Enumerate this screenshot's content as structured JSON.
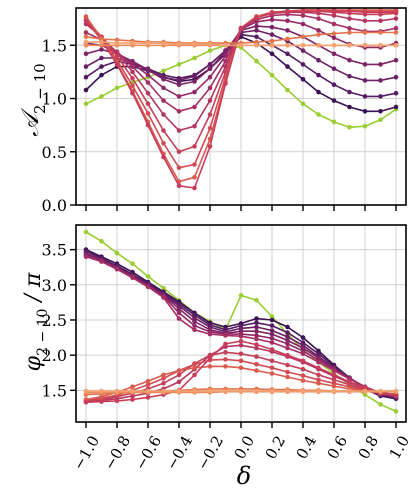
{
  "chart_data": [
    {
      "type": "line",
      "ylabel": "𝒜",
      "ylabel_sub": "2 − 10",
      "ylim": [
        0.0,
        1.85
      ],
      "xlim": [
        -1.0,
        1.0
      ],
      "yticks": [
        "0.0",
        "0.5",
        "1.0",
        "1.5"
      ],
      "ytick_values": [
        0.0,
        0.5,
        1.0,
        1.5
      ],
      "grid": true,
      "x": [
        -1.0,
        -0.9,
        -0.8,
        -0.7,
        -0.6,
        -0.5,
        -0.4,
        -0.3,
        -0.2,
        -0.1,
        0.0,
        0.1,
        0.2,
        0.3,
        0.4,
        0.5,
        0.6,
        0.7,
        0.8,
        0.9,
        1.0
      ],
      "series": [
        {
          "color": "#9acd32",
          "values": [
            0.95,
            1.02,
            1.1,
            1.15,
            1.2,
            1.26,
            1.32,
            1.38,
            1.45,
            1.5,
            1.48,
            1.35,
            1.22,
            1.08,
            0.95,
            0.85,
            0.78,
            0.73,
            0.74,
            0.8,
            0.9
          ]
        },
        {
          "color": "#3b1253",
          "values": [
            1.08,
            1.22,
            1.3,
            1.3,
            1.26,
            1.2,
            1.16,
            1.18,
            1.28,
            1.42,
            1.58,
            1.52,
            1.42,
            1.3,
            1.18,
            1.06,
            0.98,
            0.92,
            0.88,
            0.88,
            0.92
          ]
        },
        {
          "color": "#541c63",
          "values": [
            1.2,
            1.3,
            1.35,
            1.32,
            1.28,
            1.22,
            1.19,
            1.22,
            1.32,
            1.45,
            1.6,
            1.58,
            1.5,
            1.42,
            1.32,
            1.22,
            1.13,
            1.06,
            1.02,
            1.02,
            1.05
          ]
        },
        {
          "color": "#6a2065",
          "values": [
            1.3,
            1.38,
            1.38,
            1.33,
            1.27,
            1.2,
            1.17,
            1.21,
            1.32,
            1.45,
            1.62,
            1.64,
            1.6,
            1.54,
            1.45,
            1.36,
            1.28,
            1.21,
            1.17,
            1.17,
            1.2
          ]
        },
        {
          "color": "#7e2466",
          "values": [
            1.42,
            1.46,
            1.42,
            1.35,
            1.27,
            1.18,
            1.13,
            1.16,
            1.28,
            1.44,
            1.64,
            1.68,
            1.67,
            1.64,
            1.58,
            1.5,
            1.42,
            1.36,
            1.32,
            1.32,
            1.36
          ]
        },
        {
          "color": "#922866",
          "values": [
            1.52,
            1.5,
            1.43,
            1.33,
            1.22,
            1.1,
            1.02,
            1.06,
            1.2,
            1.4,
            1.65,
            1.72,
            1.74,
            1.73,
            1.7,
            1.64,
            1.57,
            1.51,
            1.48,
            1.48,
            1.52
          ]
        },
        {
          "color": "#a52e64",
          "values": [
            1.62,
            1.55,
            1.44,
            1.3,
            1.15,
            0.98,
            0.88,
            0.92,
            1.1,
            1.35,
            1.66,
            1.74,
            1.78,
            1.79,
            1.78,
            1.75,
            1.7,
            1.66,
            1.63,
            1.63,
            1.66
          ]
        },
        {
          "color": "#b5365f",
          "values": [
            1.7,
            1.58,
            1.43,
            1.25,
            1.05,
            0.85,
            0.7,
            0.74,
            0.98,
            1.3,
            1.66,
            1.76,
            1.8,
            1.81,
            1.81,
            1.8,
            1.78,
            1.75,
            1.73,
            1.73,
            1.75
          ]
        },
        {
          "color": "#c43f5a",
          "values": [
            1.74,
            1.58,
            1.4,
            1.19,
            0.95,
            0.7,
            0.5,
            0.55,
            0.85,
            1.25,
            1.66,
            1.77,
            1.81,
            1.82,
            1.82,
            1.82,
            1.81,
            1.8,
            1.79,
            1.79,
            1.8
          ]
        },
        {
          "color": "#d14b53",
          "values": [
            1.76,
            1.57,
            1.36,
            1.12,
            0.86,
            0.58,
            0.35,
            0.38,
            0.72,
            1.2,
            1.66,
            1.77,
            1.81,
            1.82,
            1.83,
            1.83,
            1.83,
            1.82,
            1.82,
            1.82,
            1.82
          ]
        },
        {
          "color": "#db5a4e",
          "values": [
            1.77,
            1.56,
            1.33,
            1.07,
            0.78,
            0.48,
            0.22,
            0.26,
            0.62,
            1.16,
            1.66,
            1.77,
            1.8,
            1.82,
            1.83,
            1.83,
            1.83,
            1.83,
            1.83,
            1.83,
            1.83
          ]
        },
        {
          "color": "#c83d5c",
          "values": [
            1.73,
            1.55,
            1.32,
            1.05,
            0.75,
            0.45,
            0.18,
            0.16,
            0.55,
            1.14,
            1.66,
            1.76,
            1.8,
            1.82,
            1.82,
            1.82,
            1.82,
            1.82,
            1.81,
            1.81,
            1.81
          ]
        },
        {
          "color": "#e4744d",
          "values": [
            1.58,
            1.56,
            1.55,
            1.54,
            1.53,
            1.53,
            1.52,
            1.52,
            1.52,
            1.52,
            1.52,
            1.53,
            1.54,
            1.56,
            1.58,
            1.6,
            1.61,
            1.62,
            1.62,
            1.62,
            1.62
          ]
        },
        {
          "color": "#ec8a5b",
          "values": [
            1.5,
            1.5,
            1.5,
            1.5,
            1.5,
            1.5,
            1.5,
            1.5,
            1.5,
            1.5,
            1.5,
            1.5,
            1.5,
            1.5,
            1.5,
            1.5,
            1.5,
            1.5,
            1.5,
            1.5,
            1.5
          ]
        },
        {
          "color": "#f2a16f",
          "values": [
            1.53,
            1.53,
            1.52,
            1.52,
            1.52,
            1.52,
            1.51,
            1.51,
            1.51,
            1.5,
            1.5,
            1.5,
            1.5,
            1.5,
            1.5,
            1.5,
            1.5,
            1.5,
            1.5,
            1.5,
            1.5
          ]
        }
      ]
    },
    {
      "type": "line",
      "ylabel": "φ",
      "ylabel_sub": "2 − 10",
      "ylabel_suffix": " / π",
      "xlabel": "δ",
      "ylim": [
        1.05,
        3.85
      ],
      "xlim": [
        -1.0,
        1.0
      ],
      "yticks": [
        "1.5",
        "2.0",
        "2.5",
        "3.0",
        "3.5"
      ],
      "ytick_values": [
        1.5,
        2.0,
        2.5,
        3.0,
        3.5
      ],
      "xticks": [
        "−1.0",
        "−0.8",
        "−0.6",
        "−0.4",
        "−0.2",
        "0.0",
        "0.2",
        "0.4",
        "0.6",
        "0.8",
        "1.0"
      ],
      "xtick_values": [
        -1.0,
        -0.8,
        -0.6,
        -0.4,
        -0.2,
        0.0,
        0.2,
        0.4,
        0.6,
        0.8,
        1.0
      ],
      "grid": true,
      "x": [
        -1.0,
        -0.9,
        -0.8,
        -0.7,
        -0.6,
        -0.5,
        -0.4,
        -0.3,
        -0.2,
        -0.1,
        0.0,
        0.1,
        0.2,
        0.3,
        0.4,
        0.5,
        0.6,
        0.7,
        0.8,
        0.9,
        1.0
      ],
      "series": [
        {
          "color": "#9acd32",
          "values": [
            3.75,
            3.62,
            3.45,
            3.3,
            3.12,
            2.95,
            2.78,
            2.6,
            2.48,
            2.36,
            2.85,
            2.78,
            2.55,
            2.3,
            2.08,
            1.9,
            1.74,
            1.58,
            1.44,
            1.3,
            1.2
          ]
        },
        {
          "color": "#3b1253",
          "values": [
            3.5,
            3.4,
            3.3,
            3.18,
            3.04,
            2.9,
            2.76,
            2.6,
            2.46,
            2.4,
            2.45,
            2.52,
            2.5,
            2.4,
            2.25,
            2.06,
            1.86,
            1.68,
            1.52,
            1.42,
            1.38
          ]
        },
        {
          "color": "#541c63",
          "values": [
            3.48,
            3.38,
            3.27,
            3.15,
            3.02,
            2.88,
            2.73,
            2.57,
            2.43,
            2.36,
            2.42,
            2.46,
            2.42,
            2.32,
            2.18,
            2.02,
            1.84,
            1.68,
            1.53,
            1.43,
            1.39
          ]
        },
        {
          "color": "#6a2065",
          "values": [
            3.45,
            3.36,
            3.25,
            3.13,
            3.0,
            2.86,
            2.7,
            2.53,
            2.4,
            2.33,
            2.38,
            2.4,
            2.35,
            2.26,
            2.14,
            1.98,
            1.82,
            1.67,
            1.54,
            1.44,
            1.4
          ]
        },
        {
          "color": "#7e2466",
          "values": [
            3.43,
            3.35,
            3.24,
            3.12,
            2.99,
            2.85,
            2.66,
            2.48,
            2.36,
            2.31,
            2.34,
            2.34,
            2.3,
            2.21,
            2.1,
            1.96,
            1.81,
            1.67,
            1.55,
            1.45,
            1.41
          ]
        },
        {
          "color": "#922866",
          "values": [
            3.42,
            3.34,
            3.23,
            3.11,
            2.98,
            2.84,
            2.6,
            2.42,
            2.33,
            2.3,
            2.3,
            2.28,
            2.24,
            2.16,
            2.06,
            1.93,
            1.8,
            1.67,
            1.55,
            1.46,
            1.42
          ]
        },
        {
          "color": "#a52e64",
          "values": [
            3.4,
            3.33,
            3.22,
            3.1,
            2.97,
            2.82,
            2.52,
            2.36,
            2.3,
            2.28,
            2.27,
            2.23,
            2.18,
            2.1,
            2.02,
            1.9,
            1.78,
            1.66,
            1.55,
            1.46,
            1.42
          ]
        },
        {
          "color": "#b5365f",
          "values": [
            1.34,
            1.36,
            1.38,
            1.42,
            1.46,
            1.52,
            1.62,
            1.8,
            2.0,
            2.12,
            2.14,
            2.1,
            2.05,
            1.98,
            1.9,
            1.8,
            1.7,
            1.61,
            1.53,
            1.46,
            1.42
          ]
        },
        {
          "color": "#c43f5a",
          "values": [
            1.35,
            1.37,
            1.41,
            1.46,
            1.52,
            1.6,
            1.72,
            1.88,
            2.0,
            2.04,
            2.02,
            1.98,
            1.92,
            1.86,
            1.8,
            1.72,
            1.65,
            1.58,
            1.51,
            1.46,
            1.43
          ]
        },
        {
          "color": "#d14b53",
          "values": [
            1.36,
            1.39,
            1.43,
            1.5,
            1.58,
            1.67,
            1.78,
            1.87,
            1.93,
            1.94,
            1.92,
            1.87,
            1.82,
            1.76,
            1.71,
            1.65,
            1.6,
            1.55,
            1.5,
            1.46,
            1.44
          ]
        },
        {
          "color": "#db5a4e",
          "values": [
            1.37,
            1.41,
            1.47,
            1.55,
            1.63,
            1.72,
            1.78,
            1.82,
            1.84,
            1.84,
            1.82,
            1.78,
            1.74,
            1.69,
            1.64,
            1.6,
            1.56,
            1.52,
            1.49,
            1.46,
            1.45
          ]
        },
        {
          "color": "#c83d5c",
          "values": [
            1.33,
            1.34,
            1.35,
            1.37,
            1.4,
            1.44,
            1.5,
            1.72,
            1.96,
            2.16,
            2.2,
            2.15,
            2.08,
            2.0,
            1.92,
            1.82,
            1.72,
            1.62,
            1.54,
            1.47,
            1.43
          ]
        },
        {
          "color": "#e4744d",
          "values": [
            1.44,
            1.45,
            1.46,
            1.47,
            1.48,
            1.49,
            1.5,
            1.51,
            1.52,
            1.52,
            1.52,
            1.52,
            1.51,
            1.51,
            1.5,
            1.5,
            1.49,
            1.49,
            1.48,
            1.48,
            1.48
          ]
        },
        {
          "color": "#ec8a5b",
          "values": [
            1.47,
            1.47,
            1.47,
            1.47,
            1.47,
            1.47,
            1.47,
            1.47,
            1.47,
            1.48,
            1.48,
            1.48,
            1.48,
            1.48,
            1.48,
            1.48,
            1.48,
            1.48,
            1.48,
            1.48,
            1.48
          ]
        },
        {
          "color": "#f2a16f",
          "values": [
            1.49,
            1.49,
            1.49,
            1.49,
            1.49,
            1.49,
            1.49,
            1.49,
            1.49,
            1.49,
            1.49,
            1.49,
            1.49,
            1.49,
            1.49,
            1.49,
            1.49,
            1.49,
            1.49,
            1.49,
            1.49
          ]
        }
      ]
    }
  ]
}
